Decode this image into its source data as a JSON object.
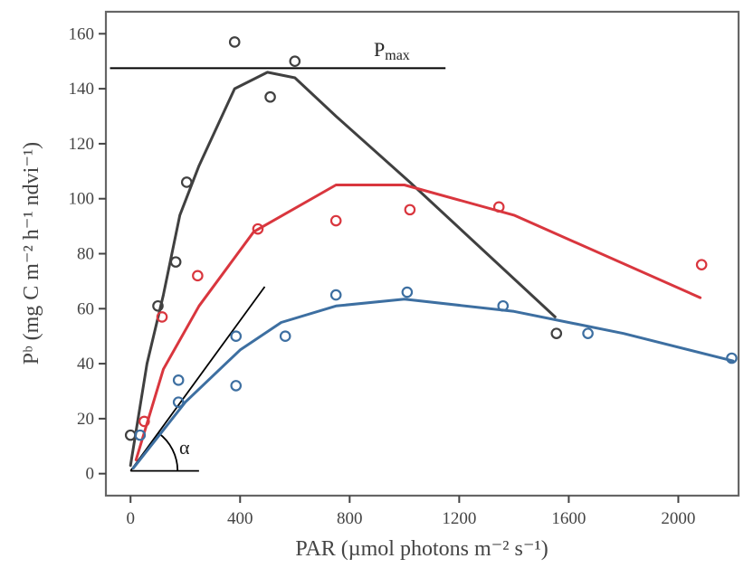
{
  "chart_data": {
    "type": "scatter",
    "xlabel": "PAR (µmol photons m⁻² s⁻¹)",
    "ylabel": "Pᵇ (mg C m⁻² h⁻¹ ndvi⁻¹)",
    "xlim": [
      -90,
      2220
    ],
    "ylim": [
      -8,
      168
    ],
    "x_ticks": [
      0,
      400,
      800,
      1200,
      1600,
      2000
    ],
    "y_ticks": [
      0,
      20,
      40,
      60,
      80,
      100,
      120,
      140,
      160
    ],
    "grid": false,
    "series": [
      {
        "color": "#404040",
        "points": [
          [
            0,
            14
          ],
          [
            100,
            61
          ],
          [
            165,
            77
          ],
          [
            205,
            106
          ],
          [
            380,
            157
          ],
          [
            510,
            137
          ],
          [
            600,
            150
          ],
          [
            1555,
            51
          ]
        ],
        "fit": [
          [
            0,
            3
          ],
          [
            60,
            40
          ],
          [
            120,
            65
          ],
          [
            180,
            94
          ],
          [
            250,
            112
          ],
          [
            380,
            140
          ],
          [
            500,
            146
          ],
          [
            600,
            144
          ],
          [
            750,
            130
          ],
          [
            1020,
            106
          ],
          [
            1550,
            57
          ]
        ]
      },
      {
        "color": "#d9363e",
        "points": [
          [
            50,
            19
          ],
          [
            115,
            57
          ],
          [
            245,
            72
          ],
          [
            465,
            89
          ],
          [
            750,
            92
          ],
          [
            1020,
            96
          ],
          [
            1345,
            97
          ],
          [
            2085,
            76
          ]
        ],
        "fit": [
          [
            20,
            5
          ],
          [
            120,
            38
          ],
          [
            250,
            61
          ],
          [
            450,
            88
          ],
          [
            750,
            105
          ],
          [
            1000,
            105
          ],
          [
            1400,
            94
          ],
          [
            2080,
            64
          ]
        ]
      },
      {
        "color": "#3d6fa1",
        "points": [
          [
            35,
            14
          ],
          [
            175,
            34
          ],
          [
            175,
            26
          ],
          [
            385,
            50
          ],
          [
            385,
            32
          ],
          [
            565,
            50
          ],
          [
            750,
            65
          ],
          [
            1010,
            66
          ],
          [
            1360,
            61
          ],
          [
            1670,
            51
          ],
          [
            2195,
            42
          ]
        ],
        "fit": [
          [
            10,
            2
          ],
          [
            200,
            26
          ],
          [
            400,
            45
          ],
          [
            550,
            55
          ],
          [
            750,
            61
          ],
          [
            1000,
            63.5
          ],
          [
            1400,
            59
          ],
          [
            1800,
            51
          ],
          [
            2200,
            41
          ]
        ]
      }
    ],
    "annotations": {
      "pmax_label": "P",
      "pmax_sub": "max",
      "pmax_value": 147.5,
      "pmax_x_range": [
        -75,
        1150
      ],
      "alpha_label": "α",
      "alpha_tangent": [
        [
          0,
          1
        ],
        [
          490,
          68
        ]
      ],
      "alpha_base": [
        [
          0,
          1
        ],
        [
          250,
          1
        ]
      ]
    }
  }
}
